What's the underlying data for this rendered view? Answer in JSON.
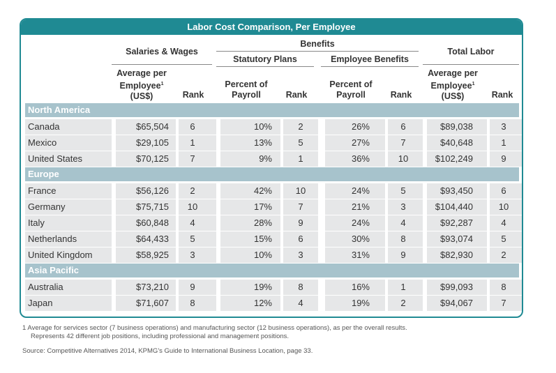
{
  "title": "Labor Cost Comparison, Per Employee",
  "headers": {
    "salaries": "Salaries & Wages",
    "benefits": "Benefits",
    "statutory": "Statutory Plans",
    "employee_benefits": "Employee Benefits",
    "total_labor": "Total Labor",
    "avg_line1": "Average per",
    "avg_line2": "Employee",
    "avg_sup": "1",
    "avg_line3": "(US$)",
    "pct_line1": "Percent of",
    "pct_line2": "Payroll",
    "rank": "Rank"
  },
  "regions": [
    {
      "name": "North America",
      "rows": [
        {
          "country": "Canada",
          "salary": "$65,504",
          "salary_rank": "6",
          "stat_pct": "10%",
          "stat_rank": "2",
          "emp_pct": "26%",
          "emp_rank": "6",
          "total": "$89,038",
          "total_rank": "3"
        },
        {
          "country": "Mexico",
          "salary": "$29,105",
          "salary_rank": "1",
          "stat_pct": "13%",
          "stat_rank": "5",
          "emp_pct": "27%",
          "emp_rank": "7",
          "total": "$40,648",
          "total_rank": "1"
        },
        {
          "country": "United States",
          "salary": "$70,125",
          "salary_rank": "7",
          "stat_pct": "9%",
          "stat_rank": "1",
          "emp_pct": "36%",
          "emp_rank": "10",
          "total": "$102,249",
          "total_rank": "9"
        }
      ]
    },
    {
      "name": "Europe",
      "rows": [
        {
          "country": "France",
          "salary": "$56,126",
          "salary_rank": "2",
          "stat_pct": "42%",
          "stat_rank": "10",
          "emp_pct": "24%",
          "emp_rank": "5",
          "total": "$93,450",
          "total_rank": "6"
        },
        {
          "country": "Germany",
          "salary": "$75,715",
          "salary_rank": "10",
          "stat_pct": "17%",
          "stat_rank": "7",
          "emp_pct": "21%",
          "emp_rank": "3",
          "total": "$104,440",
          "total_rank": "10"
        },
        {
          "country": "Italy",
          "salary": "$60,848",
          "salary_rank": "4",
          "stat_pct": "28%",
          "stat_rank": "9",
          "emp_pct": "24%",
          "emp_rank": "4",
          "total": "$92,287",
          "total_rank": "4"
        },
        {
          "country": "Netherlands",
          "salary": "$64,433",
          "salary_rank": "5",
          "stat_pct": "15%",
          "stat_rank": "6",
          "emp_pct": "30%",
          "emp_rank": "8",
          "total": "$93,074",
          "total_rank": "5"
        },
        {
          "country": "United Kingdom",
          "salary": "$58,925",
          "salary_rank": "3",
          "stat_pct": "10%",
          "stat_rank": "3",
          "emp_pct": "31%",
          "emp_rank": "9",
          "total": "$82,930",
          "total_rank": "2"
        }
      ]
    },
    {
      "name": "Asia Pacific",
      "rows": [
        {
          "country": "Australia",
          "salary": "$73,210",
          "salary_rank": "9",
          "stat_pct": "19%",
          "stat_rank": "8",
          "emp_pct": "16%",
          "emp_rank": "1",
          "total": "$99,093",
          "total_rank": "8"
        },
        {
          "country": "Japan",
          "salary": "$71,607",
          "salary_rank": "8",
          "stat_pct": "12%",
          "stat_rank": "4",
          "emp_pct": "19%",
          "emp_rank": "2",
          "total": "$94,067",
          "total_rank": "7"
        }
      ]
    }
  ],
  "footnote_line1": "1  Average for services sector (7 business operations) and manufacturing sector (12 business operations), as per the overall results.",
  "footnote_line2": "Represents 42 different job positions, including professional and management positions.",
  "source": "Source: Competitive Alternatives 2014, KPMG's Guide to International Business Location, page 33."
}
